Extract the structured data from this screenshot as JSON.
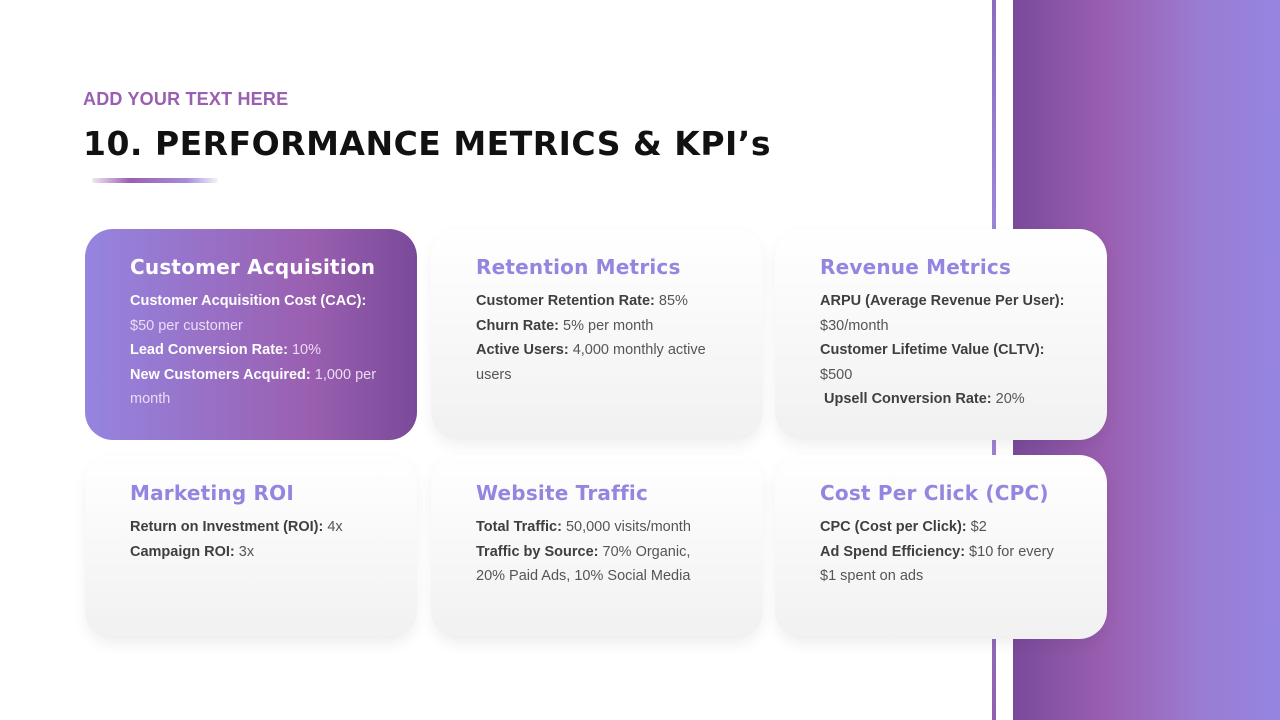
{
  "header": {
    "kicker": "ADD YOUR TEXT HERE",
    "title": "10. PERFORMANCE METRICS & KPI’s"
  },
  "colors": {
    "accent_purple": "#9a5fb0",
    "accent_lavender": "#9585e0",
    "title_text": "#111111"
  },
  "cards": [
    {
      "title": "Customer Acquisition",
      "metrics": [
        {
          "label": "Customer Acquisition Cost (CAC):",
          "value": " $50 per customer"
        },
        {
          "label": "Lead Conversion Rate:",
          "value": " 10%"
        },
        {
          "label": "New Customers Acquired:",
          "value": " 1,000 per month"
        }
      ]
    },
    {
      "title": "Retention Metrics",
      "metrics": [
        {
          "label": "Customer Retention Rate:",
          "value": " 85%"
        },
        {
          "label": "Churn Rate:",
          "value": " 5% per month"
        },
        {
          "label": "Active Users:",
          "value": " 4,000 monthly active users"
        }
      ]
    },
    {
      "title": "Revenue Metrics",
      "metrics": [
        {
          "label": "ARPU (Average Revenue Per User):",
          "value": " $30/month"
        },
        {
          "label": "Customer Lifetime Value (CLTV):",
          "value": " $500"
        },
        {
          "label": " Upsell Conversion Rate:",
          "value": " 20%"
        }
      ]
    },
    {
      "title": "Marketing ROI",
      "metrics": [
        {
          "label": "Return on Investment (ROI):",
          "value": " 4x"
        },
        {
          "label": "Campaign ROI:",
          "value": " 3x"
        }
      ]
    },
    {
      "title": "Website Traffic",
      "metrics": [
        {
          "label": "Total Traffic:",
          "value": " 50,000 visits/month"
        },
        {
          "label": "Traffic by Source:",
          "value": " 70% Organic, 20% Paid Ads, 10% Social Media"
        }
      ]
    },
    {
      "title": "Cost Per Click (CPC)",
      "metrics": [
        {
          "label": "CPC (Cost per Click):",
          "value": " $2"
        },
        {
          "label": "Ad Spend Efficiency:",
          "value": " $10 for every $1 spent on ads"
        }
      ]
    }
  ]
}
